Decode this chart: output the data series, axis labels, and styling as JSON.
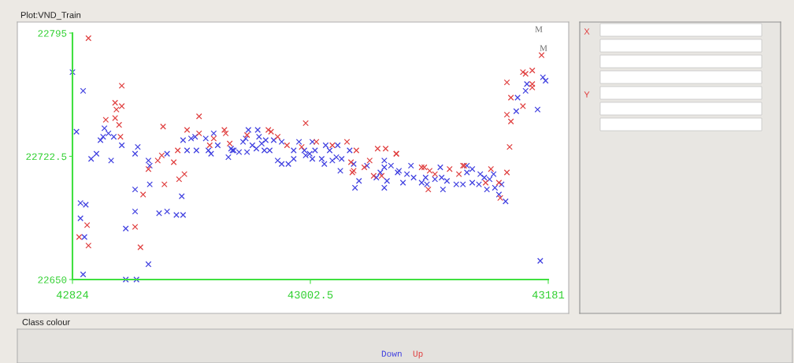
{
  "chart_data": {
    "type": "scatter",
    "title": "Plot:VND_Train",
    "legend_title": "Class colour",
    "legend": "bottom",
    "marker": "cross",
    "grid": false,
    "xlim": [
      42824,
      43181
    ],
    "xticks": [
      42824,
      43002.5,
      43181
    ],
    "ylim": [
      22650,
      22795
    ],
    "yticks": [
      22650,
      22722.5,
      22795
    ],
    "annotations": [
      "M",
      "M",
      "X",
      "Y"
    ],
    "series": [
      {
        "name": "Down",
        "color": "#4040e0",
        "x": [
          42824,
          42832,
          42827,
          42848,
          42851,
          42855,
          42845,
          42847,
          42861,
          42873,
          42871,
          42842,
          42838,
          42853,
          42881,
          42882,
          42895,
          42907,
          42913,
          42916,
          42924,
          42930,
          42933,
          42910,
          42917,
          42926,
          42928,
          42941,
          42944,
          42882,
          42871,
          42906,
          42830,
          42834,
          42830,
          42833,
          42871,
          42889,
          42895,
          42902,
          42907,
          42864,
          42881,
          42832,
          42864,
          42872,
          42956,
          42963,
          42964,
          42954,
          42969,
          42975,
          42981,
          42952,
          42959,
          42966,
          42994,
          43004,
          43014,
          43023,
          42943,
          42945,
          42962,
          42949,
          42955,
          42968,
          42972,
          42990,
          42998,
          43006,
          43017,
          43032,
          42999,
          43002,
          42990,
          43004,
          43011,
          43019,
          43022,
          43026,
          42978,
          42981,
          42986,
          43013,
          43035,
          43025,
          43058,
          43063,
          43058,
          43055,
          43045,
          43052,
          43060,
          43068,
          43039,
          43036,
          43058,
          43177,
          43179,
          43165,
          43164,
          43158,
          43157,
          43173,
          43175,
          43078,
          43069,
          43075,
          43080,
          43072,
          43086,
          43089,
          43090,
          43096,
          43101,
          43100,
          43105,
          43102,
          43112,
          43117,
          43120,
          43124,
          43120,
          43124,
          43130,
          43129,
          43133,
          43140,
          43135,
          43141,
          43146,
          43144,
          43149,
          43137
        ],
        "values": [
          22772,
          22761,
          22737,
          22739,
          22736,
          22734,
          22732,
          22734,
          22729,
          22728,
          22724,
          22724,
          22721,
          22720,
          22720,
          22717,
          22724,
          22732,
          22733,
          22734,
          22733,
          22736,
          22729,
          22726,
          22726,
          22726,
          22724,
          22722,
          22726,
          22706,
          22703,
          22699,
          22695,
          22694,
          22686,
          22675,
          22690,
          22689,
          22690,
          22688,
          22688,
          22680,
          22659,
          22653,
          22650,
          22650,
          22738,
          22738,
          22734,
          22733,
          22732,
          22732,
          22731,
          22731,
          22729,
          22730,
          22731,
          22731,
          22729,
          22729,
          22727,
          22726,
          22727,
          22725,
          22725,
          22726,
          22726,
          22726,
          22726,
          22726,
          22726,
          22726,
          22723,
          22724,
          22721,
          22721,
          22721,
          22720,
          22722,
          22721,
          22720,
          22718,
          22718,
          22718,
          22718,
          22714,
          22720,
          22717,
          22716,
          22713,
          22717,
          22710,
          22708,
          22713,
          22708,
          22704,
          22704,
          22769,
          22767,
          22765,
          22761,
          22757,
          22749,
          22750,
          22661,
          22717,
          22714,
          22712,
          22710,
          22707,
          22707,
          22710,
          22706,
          22709,
          22710,
          22716,
          22708,
          22703,
          22706,
          22706,
          22717,
          22715,
          22713,
          22707,
          22712,
          22706,
          22710,
          22712,
          22703,
          22704,
          22706,
          22700,
          22696,
          22709
        ]
      },
      {
        "name": "Up",
        "color": "#e04040",
        "x": [
          42836,
          42861,
          42856,
          42857,
          42861,
          42849,
          42856,
          42859,
          42860,
          42919,
          42892,
          42910,
          42919,
          42930,
          42938,
          42939,
          42927,
          42903,
          42891,
          42888,
          42900,
          42904,
          42908,
          42893,
          42877,
          42835,
          42829,
          42836,
          42871,
          42875,
          42881,
          42999,
          42971,
          42973,
          42955,
          42978,
          42942,
          42985,
          43007,
          43019,
          43030,
          43037,
          42996,
          43053,
          43059,
          43067,
          43047,
          43033,
          43043,
          43035,
          43034,
          43056,
          43050,
          43176,
          43162,
          43164,
          43169,
          43169,
          43169,
          43150,
          43153,
          43162,
          43150,
          43153,
          43152,
          43067,
          43150,
          43138,
          43086,
          43088,
          43092,
          43096,
          43107,
          43117,
          43118,
          43114,
          43091,
          43134,
          43144,
          43145
        ],
        "values": [
          22792,
          22764,
          22754,
          22750,
          22752,
          22744,
          22745,
          22741,
          22734,
          22746,
          22740,
          22738,
          22736,
          22733,
          22738,
          22736,
          22729,
          22726,
          22723,
          22720,
          22719,
          22709,
          22712,
          22706,
          22700,
          22682,
          22675,
          22670,
          22681,
          22669,
          22715,
          22742,
          22738,
          22737,
          22735,
          22734,
          22730,
          22729,
          22731,
          22729,
          22731,
          22726,
          22728,
          22727,
          22727,
          22724,
          22720,
          22719,
          22716,
          22714,
          22713,
          22711,
          22711,
          22782,
          22772,
          22771,
          22773,
          22765,
          22763,
          22766,
          22757,
          22752,
          22747,
          22743,
          22728,
          22724,
          22713,
          22715,
          22716,
          22716,
          22714,
          22712,
          22715,
          22717,
          22717,
          22712,
          22703,
          22707,
          22707,
          22698
        ]
      }
    ]
  }
}
